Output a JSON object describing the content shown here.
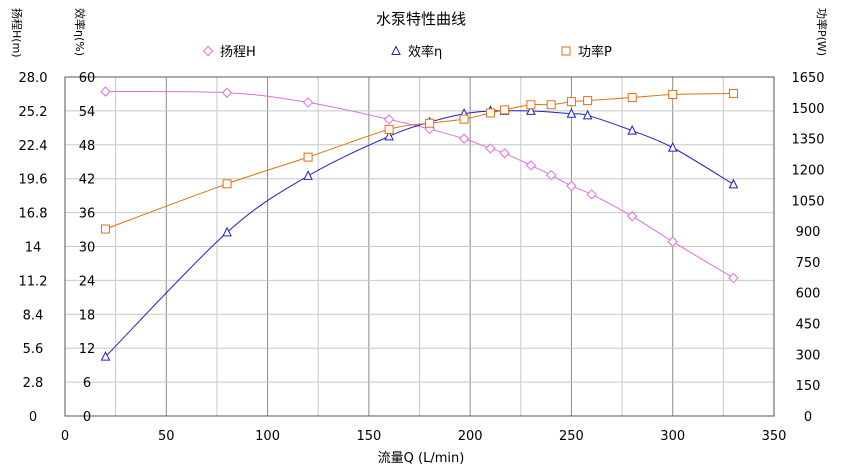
{
  "chart_data": {
    "type": "line",
    "title": "水泵特性曲线",
    "xlabel": "流量Q (L/min)",
    "x_range": [
      0,
      350
    ],
    "x_ticks": [
      "0",
      "50",
      "100",
      "150",
      "200",
      "250",
      "300",
      "350"
    ],
    "grid": true,
    "legend": "top",
    "axes": {
      "head": {
        "label": "扬程H(m)",
        "range": [
          0,
          28
        ],
        "ticks": [
          "0",
          "2.8",
          "5.6",
          "8.4",
          "11.2",
          "14",
          "16.8",
          "19.6",
          "22.4",
          "25.2",
          "28.0"
        ]
      },
      "efficiency": {
        "label": "效率η(%)",
        "range": [
          0,
          60
        ],
        "ticks": [
          "0",
          "6",
          "12",
          "18",
          "24",
          "30",
          "36",
          "42",
          "48",
          "54",
          "60"
        ]
      },
      "power": {
        "label": "功率P(W)",
        "range": [
          0,
          1650
        ],
        "ticks": [
          "0",
          "150",
          "300",
          "450",
          "600",
          "750",
          "900",
          "1050",
          "1200",
          "1350",
          "1500",
          "1650"
        ]
      }
    },
    "series": [
      {
        "name": "扬程H",
        "axis": "head",
        "color": "#e070e0",
        "marker": "diamond",
        "x": [
          20,
          80,
          120,
          160,
          180,
          197,
          210,
          217,
          230,
          240,
          250,
          260,
          280,
          300,
          330
        ],
        "y": [
          26.8,
          26.7,
          25.9,
          24.5,
          23.7,
          22.9,
          22.1,
          21.7,
          20.7,
          19.9,
          19.0,
          18.3,
          16.5,
          14.4,
          11.4
        ]
      },
      {
        "name": "效率η",
        "axis": "efficiency",
        "color": "#2020c0",
        "marker": "triangle",
        "x": [
          20,
          80,
          120,
          160,
          180,
          197,
          210,
          217,
          230,
          250,
          258,
          280,
          300,
          330
        ],
        "y": [
          10.5,
          32.5,
          42.5,
          49.5,
          52,
          53.5,
          54,
          54,
          54,
          53.5,
          53.2,
          50.5,
          47.5,
          41
        ]
      },
      {
        "name": "功率P",
        "axis": "power",
        "color": "#e07010",
        "marker": "square",
        "x": [
          20,
          80,
          120,
          160,
          180,
          197,
          210,
          217,
          230,
          240,
          250,
          258,
          280,
          300,
          330
        ],
        "y": [
          910,
          1130,
          1260,
          1395,
          1425,
          1445,
          1475,
          1490,
          1515,
          1515,
          1530,
          1535,
          1550,
          1565,
          1570
        ]
      }
    ]
  }
}
